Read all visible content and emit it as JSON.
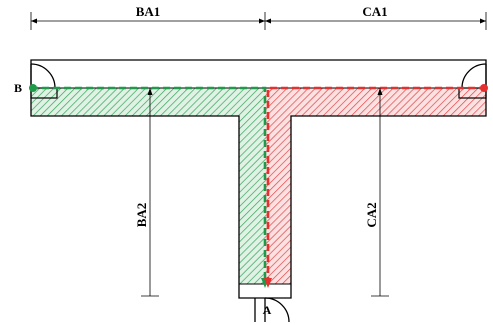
{
  "labels": {
    "top_left_dim": "BA1",
    "top_right_dim": "CA1",
    "left_vertical_dim": "BA2",
    "right_vertical_dim": "CA2",
    "point_b": "B",
    "point_a": "A"
  },
  "colors": {
    "green_path": "#1e9a4a",
    "green_fill": "#5cbf7a",
    "red_path": "#e53030",
    "red_fill": "#f07070",
    "outline": "#000000"
  }
}
